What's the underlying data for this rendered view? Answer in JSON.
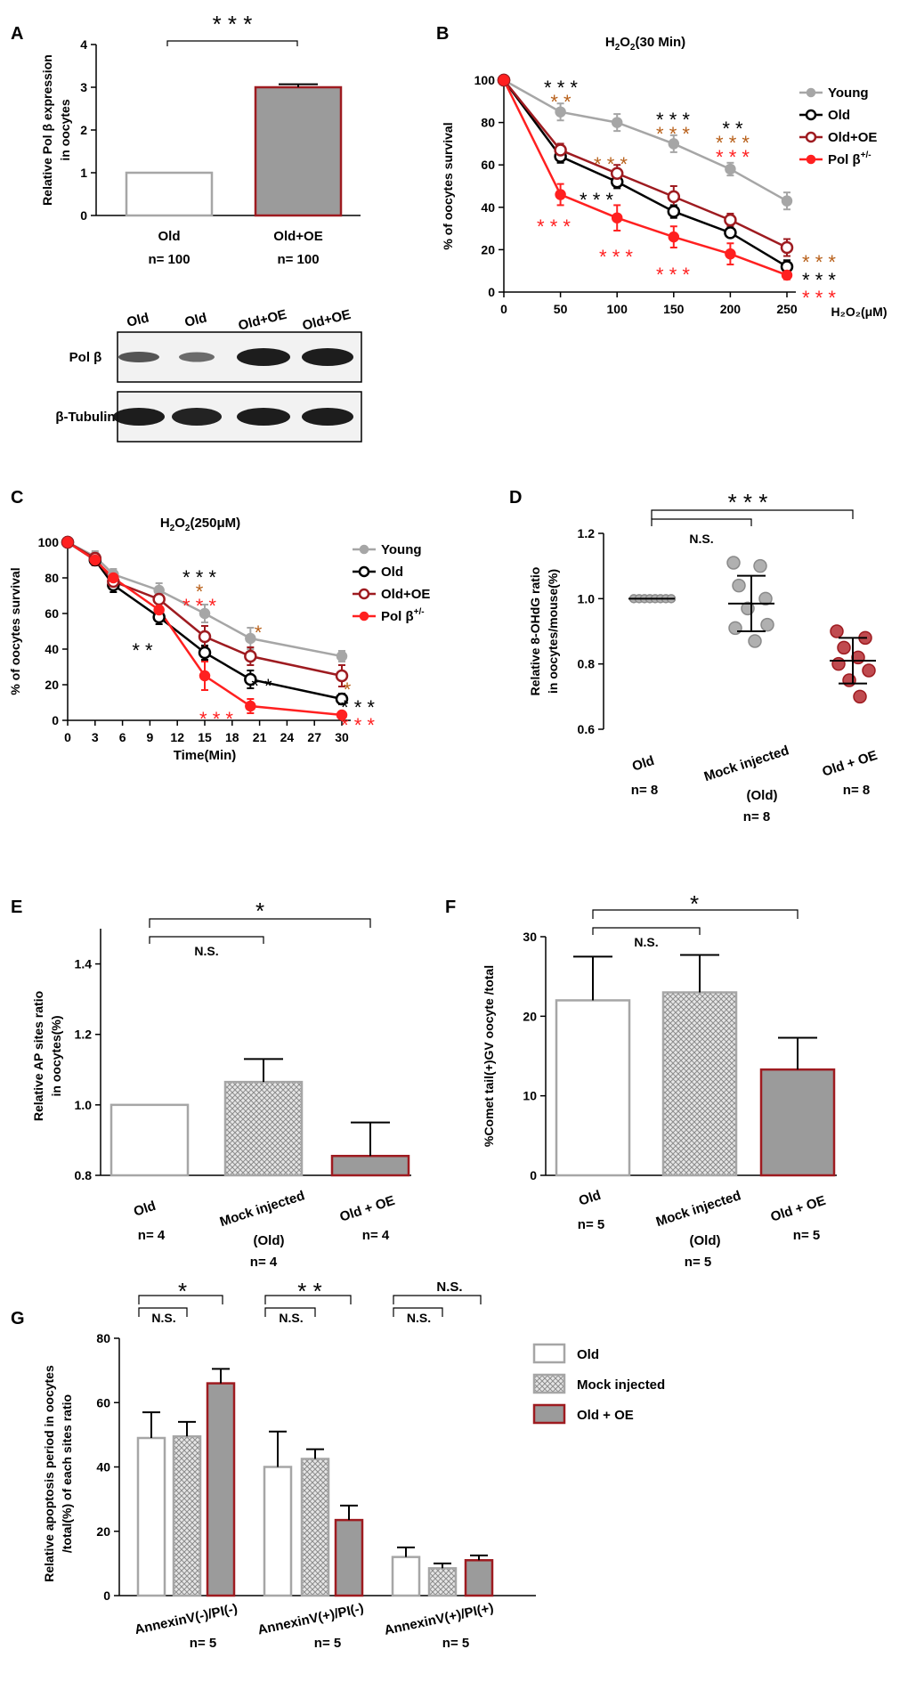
{
  "colors": {
    "gray_line": "#a6a6a6",
    "black": "#000000",
    "dark_red": "#9e1b20",
    "red": "#ff2020",
    "brown": "#b8601a",
    "bar_gray": "#9b9b9b",
    "dot_gray": "#b0b0b0",
    "dot_red": "#c04b50"
  },
  "panels": {
    "A": "A",
    "B": "B",
    "C": "C",
    "D": "D",
    "E": "E",
    "F": "F",
    "G": "G"
  },
  "blot": {
    "lanes": [
      "Old",
      "Old",
      "Old+OE",
      "Old+OE"
    ],
    "rows": [
      "Pol β",
      "β-Tubulin"
    ]
  },
  "chart_data": [
    {
      "panel": "A",
      "type": "bar",
      "ylabel": [
        "Relative Pol β expression",
        "in oocytes"
      ],
      "ylim": [
        0,
        4
      ],
      "yticks": [
        "0",
        "1",
        "2",
        "3",
        "4"
      ],
      "categories": [
        "Old",
        "Old+OE"
      ],
      "n_labels": [
        "n= 100",
        "n= 100"
      ],
      "values": [
        1.0,
        3.0
      ],
      "errors": [
        0,
        0.07
      ],
      "significance": "* * *"
    },
    {
      "panel": "B",
      "type": "line",
      "title_main": "H",
      "title_sub": "2",
      "title_mid": "O",
      "title_sub2": "2",
      "title_end": "(30 Min)",
      "xlabel": "H₂O₂(μM)",
      "ylabel": "% of oocytes survival",
      "x": [
        0,
        50,
        100,
        150,
        200,
        250
      ],
      "xticks": [
        "0",
        "50",
        "100",
        "150",
        "200",
        "250"
      ],
      "yticks": [
        "0",
        "20",
        "40",
        "60",
        "80",
        "100"
      ],
      "ylim": [
        0,
        100
      ],
      "series": [
        {
          "name": "Young",
          "values": [
            100,
            85,
            80,
            70,
            58,
            43
          ],
          "errors": [
            0,
            4,
            4,
            4,
            3,
            4
          ]
        },
        {
          "name": "Old",
          "values": [
            100,
            64,
            52,
            38,
            28,
            12
          ],
          "errors": [
            0,
            3,
            3,
            3,
            2,
            3
          ]
        },
        {
          "name": "Old+OE",
          "values": [
            100,
            67,
            56,
            45,
            34,
            21
          ],
          "errors": [
            0,
            3,
            4,
            5,
            3,
            4
          ]
        },
        {
          "name": "Pol β",
          "sup": "+/-",
          "values": [
            100,
            46,
            35,
            26,
            18,
            8
          ],
          "errors": [
            0,
            5,
            6,
            5,
            5,
            2
          ]
        }
      ],
      "annotations": [
        "* * *",
        "* *",
        "* * *",
        "* * *",
        "* *",
        "* * *",
        "* * *",
        "* * *",
        "* * *",
        "* * *",
        "* * *",
        "* * *",
        "* * *",
        "* * *",
        "* * *"
      ]
    },
    {
      "panel": "C",
      "type": "line",
      "title_main": "H",
      "title_sub": "2",
      "title_mid": "O",
      "title_sub2": "2",
      "title_end": "(250μM)",
      "xlabel": "Time(Min)",
      "ylabel": "% of oocytes survival",
      "xticks": [
        "0",
        "3",
        "6",
        "9",
        "12",
        "15",
        "18",
        "21",
        "24",
        "27",
        "30"
      ],
      "yticks": [
        "0",
        "20",
        "40",
        "60",
        "80",
        "100"
      ],
      "ylim": [
        0,
        100
      ],
      "x": [
        0,
        3,
        5,
        10,
        15,
        20,
        30
      ],
      "series": [
        {
          "name": "Young",
          "values": [
            100,
            92,
            82,
            73,
            60,
            46,
            36
          ],
          "errors": [
            0,
            3,
            3,
            4,
            5,
            6,
            3
          ]
        },
        {
          "name": "Old",
          "values": [
            100,
            90,
            76,
            58,
            38,
            23,
            12
          ],
          "errors": [
            0,
            3,
            4,
            4,
            4,
            5,
            3
          ]
        },
        {
          "name": "Old+OE",
          "values": [
            100,
            91,
            78,
            68,
            47,
            36,
            25
          ],
          "errors": [
            0,
            3,
            3,
            4,
            6,
            5,
            6
          ]
        },
        {
          "name": "Pol β",
          "sup": "+/-",
          "values": [
            100,
            90,
            80,
            62,
            25,
            8,
            3
          ],
          "errors": [
            0,
            3,
            3,
            4,
            8,
            4,
            1
          ]
        }
      ],
      "annotations": [
        "* * *",
        "*",
        "* * *",
        "* *",
        "*",
        "* *",
        "* * *",
        "* * *",
        "*",
        "* * *"
      ]
    },
    {
      "panel": "D",
      "type": "scatter",
      "ylabel": [
        "Relative 8-OHdG ratio",
        "in oocytes/mouse(%)"
      ],
      "ylim": [
        0.6,
        1.2
      ],
      "yticks": [
        "0.6",
        "0.8",
        "1.0",
        "1.2"
      ],
      "categories": [
        "Old",
        "Mock injected",
        "Old + OE"
      ],
      "category_extra": [
        "",
        "(Old)",
        ""
      ],
      "n_labels": [
        "n= 8",
        "n= 8",
        "n= 8"
      ],
      "points": [
        [
          1.0,
          1.0,
          1.0,
          1.0,
          1.0,
          1.0,
          1.0,
          1.0
        ],
        [
          1.11,
          1.1,
          1.04,
          1.0,
          0.97,
          0.91,
          0.92,
          0.87
        ],
        [
          0.9,
          0.88,
          0.85,
          0.82,
          0.8,
          0.78,
          0.75,
          0.7
        ]
      ],
      "means": [
        1.0,
        0.985,
        0.81
      ],
      "sds": [
        0,
        0.085,
        0.07
      ],
      "significance": [
        "N.S.",
        "* * *"
      ]
    },
    {
      "panel": "E",
      "type": "bar",
      "ylabel": [
        "Relative AP sites ratio",
        "in oocytes(%)"
      ],
      "ylim": [
        0.8,
        1.5
      ],
      "yticks": [
        "0.8",
        "1.0",
        "1.2",
        "1.4"
      ],
      "categories": [
        "Old",
        "Mock injected",
        "Old + OE"
      ],
      "category_extra": [
        "",
        "(Old)",
        ""
      ],
      "n_labels": [
        "n= 4",
        "n= 4",
        "n= 4"
      ],
      "values": [
        1.0,
        1.065,
        0.855
      ],
      "errors": [
        0,
        0.065,
        0.095
      ],
      "significance": [
        "N.S.",
        "*"
      ]
    },
    {
      "panel": "F",
      "type": "bar",
      "ylabel": [
        "%Comet tail(+)GV oocyte /total"
      ],
      "ylim": [
        0,
        30
      ],
      "yticks": [
        "0",
        "10",
        "20",
        "30"
      ],
      "categories": [
        "Old",
        "Mock injected",
        "Old + OE"
      ],
      "category_extra": [
        "",
        "(Old)",
        ""
      ],
      "n_labels": [
        "n= 5",
        "n= 5",
        "n= 5"
      ],
      "values": [
        22,
        23,
        13.3
      ],
      "errors": [
        5.5,
        4.7,
        4
      ],
      "significance": [
        "N.S.",
        "*"
      ]
    },
    {
      "panel": "G",
      "type": "bar",
      "ylabel": [
        "Relative apoptosis period in oocytes",
        "/total(%) of each sites ratio"
      ],
      "ylim": [
        0,
        80
      ],
      "yticks": [
        "0",
        "20",
        "40",
        "60",
        "80"
      ],
      "categories": [
        "AnnexinV(-)/PI(-)",
        "AnnexinV(+)/PI(-)",
        "AnnexinV(+)/PI(+)"
      ],
      "n_labels": [
        "n= 5",
        "n= 5",
        "n= 5"
      ],
      "series": [
        {
          "name": "Old",
          "values": [
            49,
            40,
            12
          ],
          "errors": [
            8,
            11,
            3
          ]
        },
        {
          "name": "Mock injected",
          "values": [
            49.5,
            42.5,
            8.5
          ],
          "errors": [
            4.5,
            3,
            1.5
          ]
        },
        {
          "name": "Old + OE",
          "values": [
            66,
            23.5,
            11
          ],
          "errors": [
            4.5,
            4.5,
            1.5
          ]
        }
      ],
      "significance": [
        {
          "inner": "N.S.",
          "outer": "*"
        },
        {
          "inner": "N.S.",
          "outer": "* *"
        },
        {
          "inner": "N.S.",
          "outer": "N.S."
        }
      ]
    }
  ]
}
